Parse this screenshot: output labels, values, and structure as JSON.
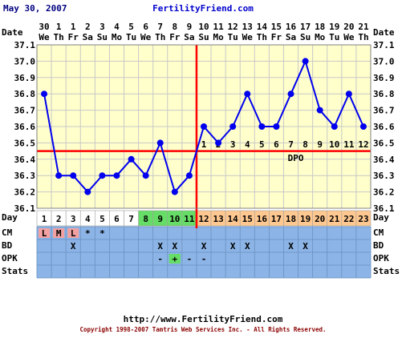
{
  "header": {
    "date": "May 30, 2007",
    "site": "FertilityFriend.com"
  },
  "footer": {
    "url": "http://www.FertilityFriend.com",
    "copyright": "Copyright 1998-2007 Tamtris Web Services Inc. - All Rights Reserved."
  },
  "chart_data": {
    "type": "line",
    "title": "",
    "xlabel": "",
    "ylabel": "",
    "row_labels": {
      "date": "Date",
      "day": "Day",
      "cm": "CM",
      "bd": "BD",
      "opk": "OPK",
      "stats": "Stats"
    },
    "ylim": [
      36.1,
      37.1
    ],
    "y_ticks": [
      "37.1",
      "37.0",
      "36.9",
      "36.8",
      "36.7",
      "36.6",
      "36.5",
      "36.4",
      "36.3",
      "36.2",
      "36.1"
    ],
    "dates": [
      "30",
      "1",
      "1",
      "2",
      "3",
      "4",
      "5",
      "6",
      "7",
      "8",
      "9",
      "10",
      "11",
      "12",
      "13",
      "14",
      "15",
      "16",
      "17",
      "18",
      "19",
      "20",
      "21"
    ],
    "weekdays": [
      "We",
      "Th",
      "Fr",
      "Sa",
      "Su",
      "Mo",
      "Tu",
      "We",
      "Th",
      "Fr",
      "Sa",
      "Su",
      "Mo",
      "Tu",
      "We",
      "Th",
      "Fr",
      "Sa",
      "Su",
      "Mo",
      "Tu",
      "We",
      "Th"
    ],
    "days": [
      "1",
      "2",
      "3",
      "4",
      "5",
      "6",
      "7",
      "8",
      "9",
      "10",
      "11",
      "12",
      "13",
      "14",
      "15",
      "16",
      "17",
      "18",
      "19",
      "20",
      "21",
      "22",
      "23"
    ],
    "temperatures": [
      36.8,
      36.3,
      36.3,
      36.2,
      36.3,
      36.3,
      36.4,
      36.3,
      36.5,
      36.2,
      36.3,
      36.6,
      36.5,
      36.6,
      36.8,
      36.6,
      36.6,
      36.8,
      37.0,
      36.7,
      36.6,
      36.8,
      36.6
    ],
    "coverline": 36.45,
    "ovulation_day": 11,
    "dpo_labels": [
      "1",
      "2",
      "3",
      "4",
      "5",
      "6",
      "7",
      "8",
      "9",
      "10",
      "11",
      "12"
    ],
    "dpo_start_day": 12,
    "dpo_text": "DPO",
    "day_phase": [
      "period",
      "none",
      "none",
      "none",
      "none",
      "none",
      "none",
      "fertile",
      "fertile",
      "fertile",
      "fertile",
      "luteal",
      "luteal",
      "luteal",
      "luteal",
      "luteal",
      "luteal",
      "luteal",
      "luteal",
      "luteal",
      "luteal",
      "luteal",
      "luteal"
    ],
    "cm": [
      "L",
      "M",
      "L",
      "*",
      "*",
      "",
      "",
      "",
      "",
      "",
      "",
      "",
      "",
      "",
      "",
      "",
      "",
      "",
      "",
      "",
      "",
      "",
      ""
    ],
    "bd": [
      "",
      "",
      "X",
      "",
      "",
      "",
      "",
      "",
      "X",
      "X",
      "",
      "X",
      "",
      "X",
      "X",
      "",
      "",
      "X",
      "X",
      "",
      "",
      "",
      ""
    ],
    "opk": [
      "",
      "",
      "",
      "",
      "",
      "",
      "",
      "",
      "-",
      "+",
      "-",
      "-",
      "",
      "",
      "",
      "",
      "",
      "",
      "",
      "",
      "",
      "",
      ""
    ],
    "colors": {
      "line": "#0000ee",
      "coverline": "#ff0000",
      "ovulation": "#ff0000",
      "plot_bg": "#ffffcc",
      "grid": "#c8c8c8",
      "period_cell": "#f2a0a0",
      "fertile_cell": "#66dd66",
      "luteal_cell": "#ffc890",
      "day_cell": "#ffffff",
      "row_bg": "#8cb4e6",
      "opk_positive": "#66dd66",
      "title": "#0000cc"
    }
  }
}
